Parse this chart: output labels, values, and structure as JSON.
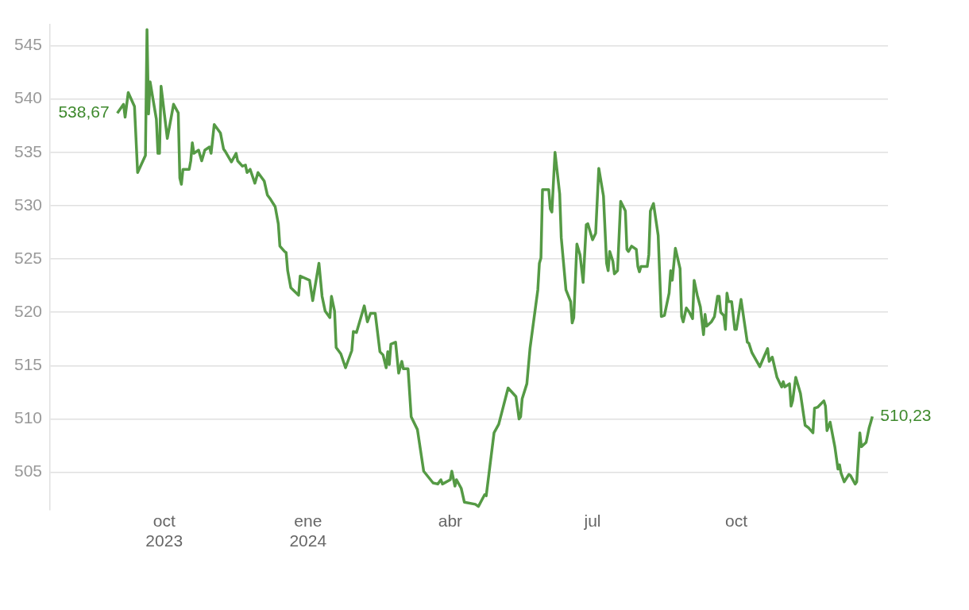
{
  "chart_data": {
    "type": "line",
    "x": [
      "2023-09-01",
      "2023-09-05",
      "2023-09-06",
      "2023-09-08",
      "2023-09-12",
      "2023-09-14",
      "2023-09-19",
      "2023-09-20",
      "2023-09-21",
      "2023-09-22",
      "2023-09-26",
      "2023-09-27",
      "2023-09-28",
      "2023-09-29",
      "2023-10-03",
      "2023-10-07",
      "2023-10-10",
      "2023-10-11",
      "2023-10-12",
      "2023-10-13",
      "2023-10-17",
      "2023-10-18",
      "2023-10-19",
      "2023-10-20",
      "2023-10-23",
      "2023-10-25",
      "2023-10-27",
      "2023-10-30",
      "2023-10-31",
      "2023-11-02",
      "2023-11-06",
      "2023-11-08",
      "2023-11-09",
      "2023-11-13",
      "2023-11-16",
      "2023-11-17",
      "2023-11-20",
      "2023-11-22",
      "2023-11-23",
      "2023-11-25",
      "2023-11-28",
      "2023-11-30",
      "2023-12-04",
      "2023-12-06",
      "2023-12-08",
      "2023-12-11",
      "2023-12-13",
      "2023-12-14",
      "2023-12-17",
      "2023-12-18",
      "2023-12-19",
      "2023-12-21",
      "2023-12-26",
      "2023-12-27",
      "2024-01-02",
      "2024-01-04",
      "2024-01-08",
      "2024-01-10",
      "2024-01-12",
      "2024-01-15",
      "2024-01-16",
      "2024-01-18",
      "2024-01-19",
      "2024-01-22",
      "2024-01-25",
      "2024-01-29",
      "2024-01-30",
      "2024-02-01",
      "2024-02-06",
      "2024-02-08",
      "2024-02-10",
      "2024-02-13",
      "2024-02-16",
      "2024-02-18",
      "2024-02-20",
      "2024-02-21",
      "2024-02-22",
      "2024-02-23",
      "2024-02-26",
      "2024-02-28",
      "2024-03-01",
      "2024-03-02",
      "2024-03-05",
      "2024-03-07",
      "2024-03-11",
      "2024-03-15",
      "2024-03-21",
      "2024-03-24",
      "2024-03-26",
      "2024-03-27",
      "2024-04-01",
      "2024-04-02",
      "2024-04-04",
      "2024-04-05",
      "2024-04-08",
      "2024-04-10",
      "2024-04-17",
      "2024-04-19",
      "2024-04-23",
      "2024-04-24",
      "2024-04-29",
      "2024-05-02",
      "2024-05-05",
      "2024-05-08",
      "2024-05-13",
      "2024-05-15",
      "2024-05-16",
      "2024-05-17",
      "2024-05-20",
      "2024-05-22",
      "2024-05-27",
      "2024-05-28",
      "2024-05-29",
      "2024-05-30",
      "2024-06-03",
      "2024-06-04",
      "2024-06-05",
      "2024-06-07",
      "2024-06-10",
      "2024-06-11",
      "2024-06-14",
      "2024-06-17",
      "2024-06-18",
      "2024-06-19",
      "2024-06-21",
      "2024-06-23",
      "2024-06-25",
      "2024-06-27",
      "2024-06-28",
      "2024-07-01",
      "2024-07-03",
      "2024-07-05",
      "2024-07-08",
      "2024-07-10",
      "2024-07-11",
      "2024-07-12",
      "2024-07-14",
      "2024-07-15",
      "2024-07-17",
      "2024-07-19",
      "2024-07-22",
      "2024-07-23",
      "2024-07-24",
      "2024-07-26",
      "2024-07-29",
      "2024-07-30",
      "2024-07-31",
      "2024-08-01",
      "2024-08-05",
      "2024-08-06",
      "2024-08-07",
      "2024-08-09",
      "2024-08-12",
      "2024-08-14",
      "2024-08-16",
      "2024-08-19",
      "2024-08-20",
      "2024-08-21",
      "2024-08-23",
      "2024-08-26",
      "2024-08-27",
      "2024-08-28",
      "2024-08-30",
      "2024-09-01",
      "2024-09-03",
      "2024-09-04",
      "2024-09-06",
      "2024-09-08",
      "2024-09-10",
      "2024-09-11",
      "2024-09-12",
      "2024-09-15",
      "2024-09-17",
      "2024-09-19",
      "2024-09-20",
      "2024-09-21",
      "2024-09-23",
      "2024-09-24",
      "2024-09-25",
      "2024-09-26",
      "2024-09-28",
      "2024-09-30",
      "2024-10-01",
      "2024-10-04",
      "2024-10-06",
      "2024-10-08",
      "2024-10-09",
      "2024-10-11",
      "2024-10-16",
      "2024-10-18",
      "2024-10-21",
      "2024-10-22",
      "2024-10-24",
      "2024-10-27",
      "2024-10-30",
      "2024-10-31",
      "2024-11-01",
      "2024-11-04",
      "2024-11-05",
      "2024-11-06",
      "2024-11-08",
      "2024-11-11",
      "2024-11-14",
      "2024-11-16",
      "2024-11-19",
      "2024-11-20",
      "2024-11-22",
      "2024-11-26",
      "2024-11-27",
      "2024-11-28",
      "2024-11-30",
      "2024-12-03",
      "2024-12-05",
      "2024-12-06",
      "2024-12-07",
      "2024-12-09",
      "2024-12-12",
      "2024-12-13",
      "2024-12-16",
      "2024-12-17",
      "2024-12-19",
      "2024-12-20",
      "2024-12-23",
      "2024-12-25",
      "2024-12-26",
      "2024-12-27"
    ],
    "series": [
      {
        "color": "#559a45",
        "values": [
          538.67,
          539.5,
          538.3,
          540.6,
          539.3,
          533.1,
          534.7,
          546.5,
          538.6,
          541.6,
          538.1,
          534.9,
          534.9,
          541.2,
          536.3,
          539.5,
          538.7,
          532.6,
          532.0,
          533.4,
          533.4,
          534.2,
          535.9,
          534.9,
          535.2,
          534.2,
          535.2,
          535.5,
          534.9,
          537.6,
          536.8,
          535.3,
          535.1,
          534.1,
          534.9,
          534.2,
          533.7,
          533.8,
          533.1,
          533.4,
          532.1,
          533.1,
          532.3,
          531.0,
          530.6,
          529.9,
          528.3,
          526.2,
          525.7,
          525.6,
          523.9,
          522.3,
          521.6,
          523.4,
          523.0,
          521.1,
          524.6,
          521.5,
          520.1,
          519.5,
          521.5,
          520.1,
          516.7,
          516.1,
          514.8,
          516.4,
          518.2,
          518.1,
          520.6,
          519.1,
          519.9,
          519.9,
          516.3,
          516.0,
          514.8,
          516.3,
          515.1,
          517.0,
          517.2,
          514.3,
          515.4,
          514.7,
          514.7,
          510.2,
          509.0,
          505.1,
          504.0,
          503.9,
          504.3,
          503.9,
          504.3,
          505.1,
          503.7,
          504.3,
          503.5,
          502.2,
          502.0,
          501.8,
          502.9,
          502.8,
          508.7,
          509.5,
          511.2,
          512.9,
          512.1,
          510.0,
          510.2,
          511.9,
          513.3,
          516.6,
          522.1,
          524.6,
          525.1,
          531.5,
          531.5,
          529.7,
          529.4,
          535.0,
          531.1,
          527.0,
          522.1,
          521.0,
          519.0,
          519.5,
          526.4,
          525.4,
          522.8,
          528.2,
          528.3,
          526.8,
          527.4,
          533.5,
          530.9,
          524.6,
          523.9,
          525.7,
          524.8,
          523.6,
          523.9,
          530.4,
          529.5,
          525.9,
          525.7,
          526.2,
          525.9,
          524.3,
          523.8,
          524.3,
          524.3,
          525.4,
          529.5,
          530.2,
          527.2,
          519.6,
          519.7,
          521.8,
          523.9,
          523.0,
          526.0,
          524.1,
          519.6,
          519.1,
          520.4,
          520.0,
          519.4,
          523.0,
          521.6,
          520.5,
          517.9,
          519.8,
          518.7,
          519.1,
          519.6,
          521.5,
          521.5,
          520.0,
          519.7,
          518.4,
          521.8,
          521.0,
          521.0,
          518.4,
          518.4,
          521.2,
          519.2,
          517.2,
          517.1,
          516.2,
          514.9,
          515.6,
          516.6,
          515.4,
          515.8,
          513.9,
          513.0,
          513.5,
          513.0,
          513.3,
          511.2,
          511.7,
          513.9,
          512.4,
          509.4,
          509.2,
          508.7,
          511.0,
          511.1,
          511.7,
          511.2,
          508.9,
          509.7,
          507.4,
          505.3,
          505.7,
          504.9,
          504.1,
          504.8,
          504.7,
          503.9,
          504.1,
          508.7,
          507.4,
          507.8,
          509.2,
          509.7,
          510.23
        ]
      }
    ],
    "xlim": [
      "2023-07-20",
      "2025-01-06"
    ],
    "xticks": [
      {
        "value": "2023-10-01",
        "label": "oct 2023"
      },
      {
        "value": "2024-01-01",
        "label": "ene 2024"
      },
      {
        "value": "2024-04-01",
        "label": "abr"
      },
      {
        "value": "2024-07-01",
        "label": "jul"
      },
      {
        "value": "2024-10-01",
        "label": "oct"
      }
    ],
    "ylim": [
      501.5,
      547
    ],
    "yticks": [
      505,
      510,
      515,
      520,
      525,
      530,
      535,
      540,
      545
    ],
    "grid": "y",
    "legend": false,
    "annotations": [
      {
        "text": "538,67",
        "x": "2023-09-01",
        "y": 538.67
      },
      {
        "text": "510,23",
        "x": "2024-12-27",
        "y": 510.23
      }
    ]
  }
}
